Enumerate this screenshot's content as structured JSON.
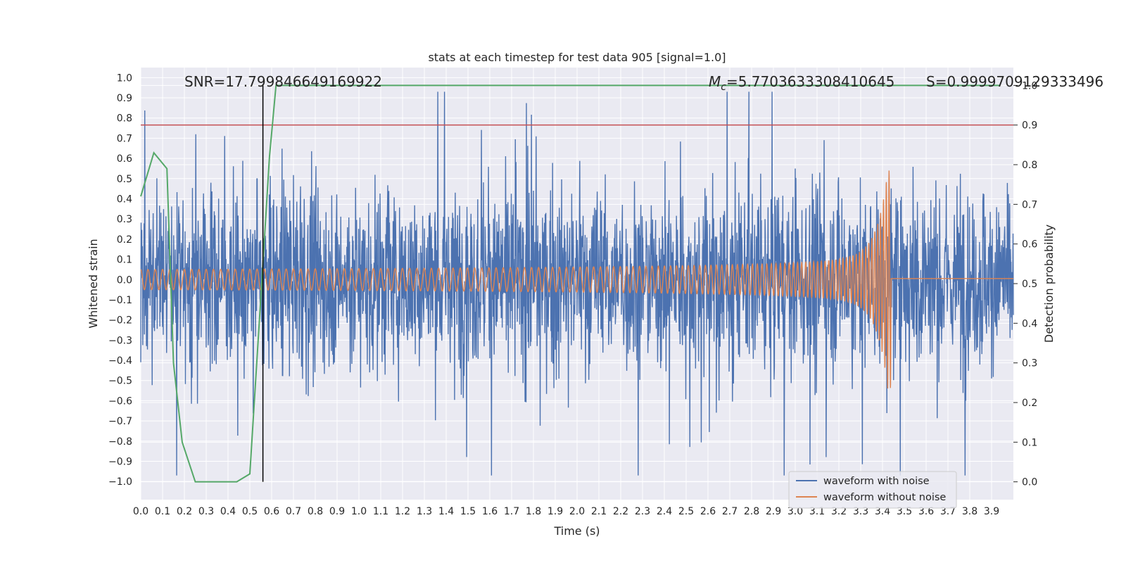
{
  "chart_data": {
    "type": "line",
    "title": "stats at each timestep for test data 905 [signal=1.0]",
    "xlabel": "Time (s)",
    "ylabel": "Whitened strain",
    "y2label": "Detection probability",
    "xlim": [
      0.0,
      4.0
    ],
    "ylim": [
      -1.09,
      1.05
    ],
    "y2lim": [
      -0.045,
      1.045
    ],
    "xticks": [
      "0.0",
      "0.1",
      "0.2",
      "0.3",
      "0.4",
      "0.5",
      "0.6",
      "0.7",
      "0.8",
      "0.9",
      "1.0",
      "1.1",
      "1.2",
      "1.3",
      "1.4",
      "1.5",
      "1.6",
      "1.7",
      "1.8",
      "1.9",
      "2.0",
      "2.1",
      "2.2",
      "2.3",
      "2.4",
      "2.5",
      "2.6",
      "2.7",
      "2.8",
      "2.9",
      "3.0",
      "3.1",
      "3.2",
      "3.3",
      "3.4",
      "3.5",
      "3.6",
      "3.7",
      "3.8",
      "3.9"
    ],
    "yticks": [
      "1.0",
      "0.9",
      "0.8",
      "0.7",
      "0.6",
      "0.5",
      "0.4",
      "0.3",
      "0.2",
      "0.1",
      "0.0",
      "−0.1",
      "−0.2",
      "−0.3",
      "−0.4",
      "−0.5",
      "−0.6",
      "−0.7",
      "−0.8",
      "−0.9",
      "−1.0"
    ],
    "y2ticks": [
      "1.0",
      "0.9",
      "0.8",
      "0.7",
      "0.6",
      "0.5",
      "0.4",
      "0.3",
      "0.2",
      "0.1",
      "0.0"
    ],
    "grid": true,
    "legend_position": "lower-right",
    "annotations": {
      "snr": "SNR=17.799846649169922",
      "mc_symbol": "M",
      "mc_subscript": "c",
      "mc_value": "=5.7703633308410645",
      "s": "S=0.9999709129333496"
    },
    "threshold_probability": 0.9,
    "event_marker_time": 0.56,
    "colors": {
      "noisy": "#4c72b0",
      "clean": "#dd8452",
      "probability": "#55a868",
      "threshold": "#c44e52",
      "marker": "#000000",
      "background": "#eaeaf2"
    },
    "series": [
      {
        "name": "waveform with noise",
        "description_values": {
          "typical_amplitude": 0.35,
          "peak_max": 0.93,
          "peak_min": -0.97,
          "duration": 4.0
        }
      },
      {
        "name": "waveform without noise",
        "description_values": {
          "start_amplitude": 0.05,
          "peak_amplitude": 0.54,
          "merger_time": 3.44,
          "start_frequency_hz": 30,
          "end_frequency_hz": 80,
          "post_merger_value": 0.005
        }
      },
      {
        "name": "",
        "axis": "right",
        "x": [
          0.0,
          0.06,
          0.12,
          0.15,
          0.19,
          0.25,
          0.31,
          0.37,
          0.44,
          0.5,
          0.56,
          0.59,
          0.62,
          0.65,
          1.0,
          2.0,
          3.0,
          3.94
        ],
        "values": [
          0.72,
          0.83,
          0.79,
          0.3,
          0.1,
          0.0,
          0.0,
          0.0,
          0.0,
          0.02,
          0.55,
          0.82,
          1.0,
          1.0,
          1.0,
          1.0,
          1.0,
          1.0
        ]
      }
    ]
  }
}
